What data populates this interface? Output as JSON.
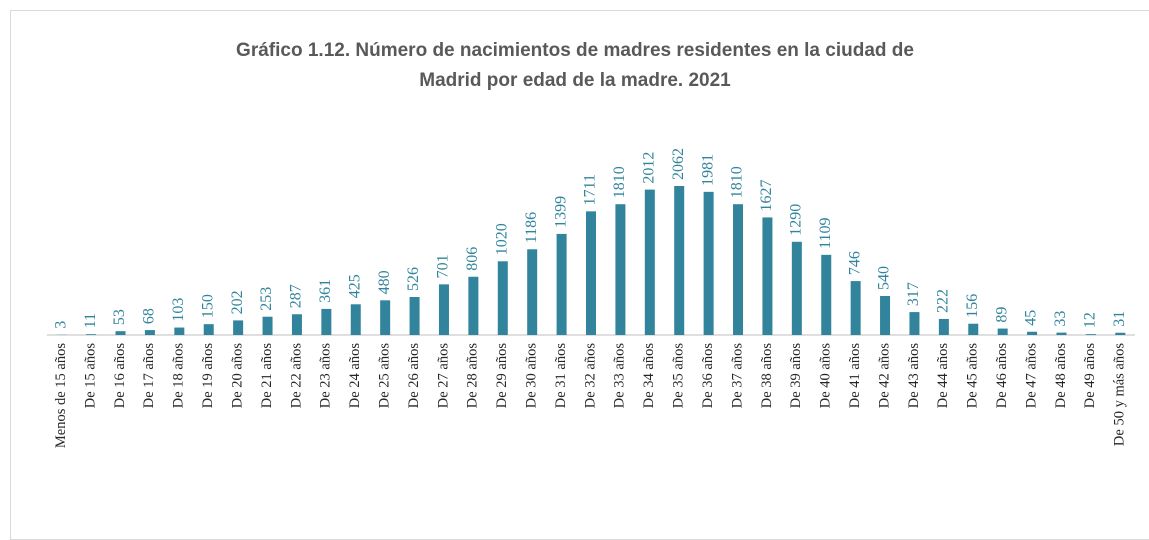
{
  "chart_data": {
    "type": "bar",
    "title": "Gráfico 1.12. Número de nacimientos de madres residentes en la ciudad de Madrid por edad de la madre. 2021",
    "categories": [
      "Menos de 15 años",
      "De 15 años",
      "De 16 años",
      "De 17 años",
      "De 18 años",
      "De 19 años",
      "De 20 años",
      "De 21 años",
      "De 22 años",
      "De 23 años",
      "De 24 años",
      "De 25 años",
      "De 26 años",
      "De 27 años",
      "De 28 años",
      "De 29 años",
      "De 30 años",
      "De 31 años",
      "De 32 años",
      "De 33 años",
      "De 34 años",
      "De 35 años",
      "De 36 años",
      "De 37 años",
      "De 38 años",
      "De 39 años",
      "De 40 años",
      "De 41 años",
      "De 42 años",
      "De 43 años",
      "De 44 años",
      "De 45 años",
      "De 46 años",
      "De 47 años",
      "De 48 años",
      "De 49 años",
      "De 50 y más años"
    ],
    "values": [
      3,
      11,
      53,
      68,
      103,
      150,
      202,
      253,
      287,
      361,
      425,
      480,
      526,
      701,
      806,
      1020,
      1186,
      1399,
      1711,
      1810,
      2012,
      2062,
      1981,
      1810,
      1627,
      1290,
      1109,
      746,
      540,
      317,
      222,
      156,
      89,
      45,
      33,
      12,
      31
    ],
    "color": "#31849b"
  }
}
